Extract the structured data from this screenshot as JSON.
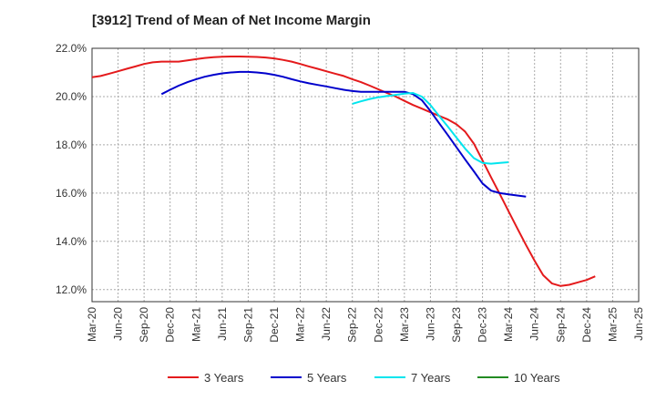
{
  "chart_data": {
    "type": "line",
    "title": "[3912]  Trend of Mean of Net Income Margin",
    "xlabel": "",
    "ylabel": "",
    "ylim": [
      11.5,
      22.0
    ],
    "yticks": [
      12.0,
      14.0,
      16.0,
      18.0,
      20.0,
      22.0
    ],
    "ytick_labels": [
      "12.0%",
      "14.0%",
      "16.0%",
      "18.0%",
      "20.0%",
      "22.0%"
    ],
    "x_categories": [
      "Mar-20",
      "Jun-20",
      "Sep-20",
      "Dec-20",
      "Mar-21",
      "Jun-21",
      "Sep-21",
      "Dec-21",
      "Mar-22",
      "Jun-22",
      "Sep-22",
      "Dec-22",
      "Mar-23",
      "Jun-23",
      "Sep-23",
      "Dec-23",
      "Mar-24",
      "Jun-24",
      "Sep-24",
      "Dec-24",
      "Mar-25",
      "Jun-25"
    ],
    "grid": true,
    "legend_position": "bottom",
    "series": [
      {
        "name": "3 Years",
        "color": "#e41a1c",
        "values": [
          [
            0,
            20.8
          ],
          [
            0.33,
            20.85
          ],
          [
            0.67,
            20.95
          ],
          [
            1,
            21.05
          ],
          [
            1.33,
            21.15
          ],
          [
            1.67,
            21.25
          ],
          [
            2,
            21.35
          ],
          [
            2.33,
            21.42
          ],
          [
            2.67,
            21.45
          ],
          [
            3,
            21.45
          ],
          [
            3.33,
            21.45
          ],
          [
            3.67,
            21.5
          ],
          [
            4,
            21.55
          ],
          [
            4.33,
            21.6
          ],
          [
            4.67,
            21.63
          ],
          [
            5,
            21.65
          ],
          [
            5.33,
            21.66
          ],
          [
            5.67,
            21.66
          ],
          [
            6,
            21.65
          ],
          [
            6.33,
            21.64
          ],
          [
            6.67,
            21.62
          ],
          [
            7,
            21.58
          ],
          [
            7.33,
            21.52
          ],
          [
            7.67,
            21.45
          ],
          [
            8,
            21.35
          ],
          [
            8.33,
            21.25
          ],
          [
            8.67,
            21.15
          ],
          [
            9,
            21.05
          ],
          [
            9.33,
            20.95
          ],
          [
            9.67,
            20.85
          ],
          [
            10,
            20.72
          ],
          [
            10.33,
            20.6
          ],
          [
            10.67,
            20.45
          ],
          [
            11,
            20.3
          ],
          [
            11.33,
            20.15
          ],
          [
            11.67,
            20.0
          ],
          [
            12,
            19.82
          ],
          [
            12.33,
            19.65
          ],
          [
            12.67,
            19.5
          ],
          [
            13,
            19.35
          ],
          [
            13.33,
            19.2
          ],
          [
            13.67,
            19.05
          ],
          [
            14,
            18.85
          ],
          [
            14.33,
            18.55
          ],
          [
            14.67,
            18.05
          ],
          [
            15,
            17.35
          ],
          [
            15.33,
            16.65
          ],
          [
            15.67,
            15.95
          ],
          [
            16,
            15.25
          ],
          [
            16.33,
            14.55
          ],
          [
            16.67,
            13.85
          ],
          [
            17,
            13.2
          ],
          [
            17.33,
            12.6
          ],
          [
            17.67,
            12.25
          ],
          [
            18,
            12.15
          ],
          [
            18.33,
            12.2
          ],
          [
            18.67,
            12.3
          ],
          [
            19,
            12.4
          ],
          [
            19.33,
            12.55
          ]
        ]
      },
      {
        "name": "5 Years",
        "color": "#0000cc",
        "values": [
          [
            2.67,
            20.1
          ],
          [
            3,
            20.28
          ],
          [
            3.33,
            20.45
          ],
          [
            3.67,
            20.6
          ],
          [
            4,
            20.72
          ],
          [
            4.33,
            20.82
          ],
          [
            4.67,
            20.9
          ],
          [
            5,
            20.96
          ],
          [
            5.33,
            21.0
          ],
          [
            5.67,
            21.02
          ],
          [
            6,
            21.02
          ],
          [
            6.33,
            21.0
          ],
          [
            6.67,
            20.96
          ],
          [
            7,
            20.9
          ],
          [
            7.33,
            20.82
          ],
          [
            7.67,
            20.72
          ],
          [
            8,
            20.63
          ],
          [
            8.33,
            20.55
          ],
          [
            8.67,
            20.48
          ],
          [
            9,
            20.42
          ],
          [
            9.33,
            20.35
          ],
          [
            9.67,
            20.28
          ],
          [
            10,
            20.23
          ],
          [
            10.33,
            20.2
          ],
          [
            10.67,
            20.2
          ],
          [
            11,
            20.2
          ],
          [
            11.33,
            20.2
          ],
          [
            11.67,
            20.2
          ],
          [
            12,
            20.2
          ],
          [
            12.33,
            20.1
          ],
          [
            12.67,
            19.85
          ],
          [
            13,
            19.4
          ],
          [
            13.33,
            18.9
          ],
          [
            13.67,
            18.4
          ],
          [
            14,
            17.9
          ],
          [
            14.33,
            17.4
          ],
          [
            14.67,
            16.9
          ],
          [
            15,
            16.4
          ],
          [
            15.33,
            16.1
          ],
          [
            15.67,
            16.0
          ],
          [
            16,
            15.95
          ],
          [
            16.33,
            15.9
          ],
          [
            16.67,
            15.85
          ]
        ]
      },
      {
        "name": "7 Years",
        "color": "#00e5ee",
        "values": [
          [
            10,
            19.7
          ],
          [
            10.33,
            19.8
          ],
          [
            10.67,
            19.9
          ],
          [
            11,
            19.97
          ],
          [
            11.33,
            20.02
          ],
          [
            11.67,
            20.07
          ],
          [
            12,
            20.12
          ],
          [
            12.33,
            20.15
          ],
          [
            12.67,
            20.0
          ],
          [
            13,
            19.65
          ],
          [
            13.33,
            19.2
          ],
          [
            13.67,
            18.75
          ],
          [
            14,
            18.3
          ],
          [
            14.33,
            17.85
          ],
          [
            14.67,
            17.45
          ],
          [
            15,
            17.25
          ],
          [
            15.33,
            17.22
          ],
          [
            15.67,
            17.25
          ],
          [
            16,
            17.28
          ]
        ]
      },
      {
        "name": "10 Years",
        "color": "#228b22",
        "values": []
      }
    ]
  }
}
